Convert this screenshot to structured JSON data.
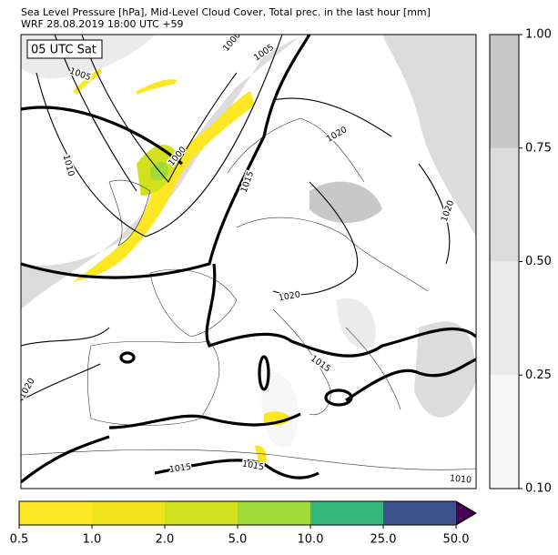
{
  "header": {
    "title": "Sea Level Pressure [hPa], Mid-Level Cloud Cover, Total prec. in the last hour [mm]",
    "subtitle": "WRF 28.08.2019 18:00 UTC +59"
  },
  "map": {
    "time_label": "05 UTC Sat",
    "isobar_labels": [
      "1000",
      "1005",
      "1005",
      "1010",
      "1000",
      "1015",
      "1020",
      "1020",
      "1020",
      "1015",
      "1020",
      "1015",
      "1015",
      "1010"
    ]
  },
  "cloud_colorbar": {
    "ticks": [
      {
        "value": 0.1,
        "label": "0.10"
      },
      {
        "value": 0.25,
        "label": "0.25"
      },
      {
        "value": 0.5,
        "label": "0.50"
      },
      {
        "value": 0.75,
        "label": "0.75"
      },
      {
        "value": 1.0,
        "label": "1.00"
      }
    ],
    "colors": [
      "#f7f7f7",
      "#ebebeb",
      "#dcdcdc",
      "#c8c8c8"
    ]
  },
  "precip_colorbar": {
    "ticks": [
      {
        "value": 0.5,
        "label": "0.5"
      },
      {
        "value": 1.0,
        "label": "1.0"
      },
      {
        "value": 2.0,
        "label": "2.0"
      },
      {
        "value": 5.0,
        "label": "5.0"
      },
      {
        "value": 10.0,
        "label": "10.0"
      },
      {
        "value": 25.0,
        "label": "25.0"
      },
      {
        "value": 50.0,
        "label": "50.0"
      }
    ],
    "colors": [
      "#fde725",
      "#f0e31c",
      "#d2e01e",
      "#a0da39",
      "#35b779",
      "#3b528b"
    ],
    "extend_color": "#440154"
  }
}
